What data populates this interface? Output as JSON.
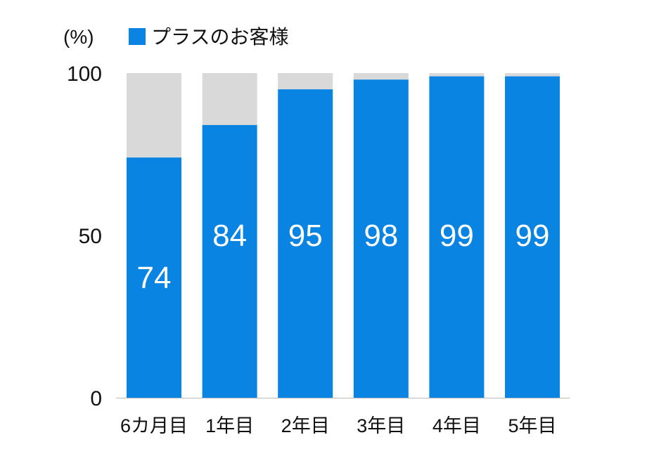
{
  "chart_data": {
    "type": "bar",
    "stacked_to": 100,
    "unit_label": "(%)",
    "categories": [
      "6カ月目",
      "1年目",
      "2年目",
      "3年目",
      "4年目",
      "5年目"
    ],
    "series": [
      {
        "name": "プラスのお客様",
        "values": [
          74,
          84,
          95,
          98,
          99,
          99
        ],
        "color": "#0a84e3"
      }
    ],
    "remainder_color": "#d9d9d9",
    "yticks": [
      0,
      50,
      100
    ],
    "ylim": [
      0,
      100
    ],
    "grid": false,
    "legend": "top"
  }
}
